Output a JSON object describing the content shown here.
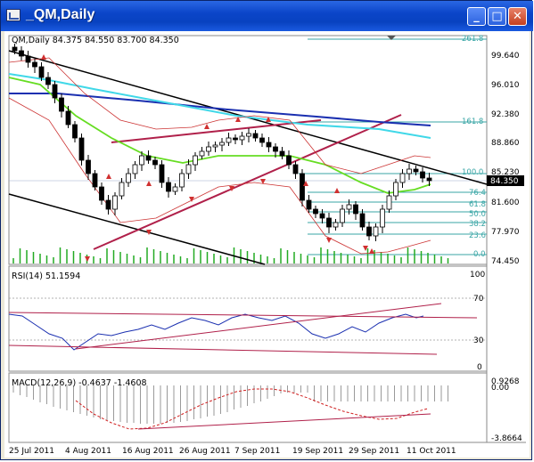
{
  "window": {
    "title": "_QM,Daily",
    "buttons": {
      "minimize": "_",
      "maximize": "□",
      "close": "✕"
    }
  },
  "main_panel": {
    "header": "QM,Daily  84.375 84.550 83.700 84.350",
    "price_labels": [
      "99.640",
      "96.010",
      "92.380",
      "88.860",
      "85.230",
      "81.600",
      "77.970",
      "74.450"
    ],
    "current_price": "84.350",
    "fib_levels": [
      "261.8",
      "161.8",
      "100.0",
      "76.4",
      "61.8",
      "50.0",
      "38.2",
      "23.6",
      "0.0"
    ]
  },
  "rsi_panel": {
    "header": "RSI(14) 51.1594",
    "scale_labels": [
      "100",
      "70",
      "30",
      "0"
    ]
  },
  "macd_panel": {
    "header": "MACD(12,26,9) -0.4637 -1.4608",
    "scale_labels": [
      "0.9268",
      "0.00",
      "-3.8664"
    ]
  },
  "time_axis": [
    "25 Jul 2011",
    "4 Aug 2011",
    "16 Aug 2011",
    "26 Aug 2011",
    "7 Sep 2011",
    "19 Sep 2011",
    "29 Sep 2011",
    "11 Oct 2011"
  ],
  "colors": {
    "bull_candle": "#ffffff",
    "bear_candle": "#000000",
    "ma_blue": "#1a2fb0",
    "ma_cyan": "#40d8e8",
    "ma_green": "#66dd22",
    "trend_crimson": "#b0204a",
    "fib": "#3aa6a6",
    "volume": "#22aa22"
  }
}
